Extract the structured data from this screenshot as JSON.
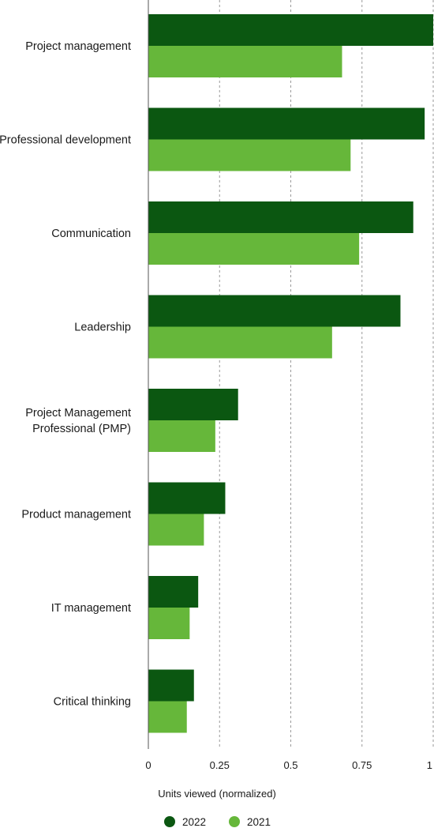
{
  "chart_data": {
    "type": "bar",
    "orientation": "horizontal",
    "categories": [
      "Project management",
      "Professional development",
      "Communication",
      "Leadership",
      "Project Management Professional (PMP)",
      "Product management",
      "IT management",
      "Critical thinking"
    ],
    "category_label_lines": [
      [
        "Project management"
      ],
      [
        "Professional development"
      ],
      [
        "Communication"
      ],
      [
        "Leadership"
      ],
      [
        "Project Management",
        "Professional (PMP)"
      ],
      [
        "Product management"
      ],
      [
        "IT management"
      ],
      [
        "Critical thinking"
      ]
    ],
    "series": [
      {
        "name": "2022",
        "color": "#0b5711",
        "values": [
          1.0,
          0.97,
          0.93,
          0.885,
          0.315,
          0.27,
          0.175,
          0.16
        ]
      },
      {
        "name": "2021",
        "color": "#66b73a",
        "values": [
          0.68,
          0.71,
          0.74,
          0.645,
          0.235,
          0.195,
          0.145,
          0.135
        ]
      }
    ],
    "xlim": [
      0,
      1
    ],
    "xticks": [
      0,
      0.25,
      0.5,
      0.75,
      1
    ],
    "xtick_labels": [
      "0",
      "0.25",
      "0.5",
      "0.75",
      "1"
    ],
    "xlabel": "Units viewed (normalized)",
    "grid": "vertical dashed",
    "legend": "bottom"
  }
}
